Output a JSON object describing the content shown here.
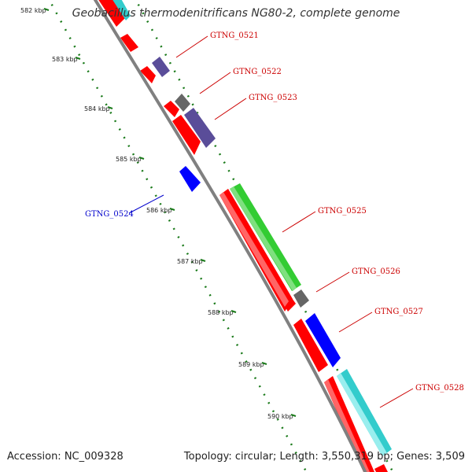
{
  "title": "Geobacillus thermodenitrificans NG80-2, complete genome",
  "footer": {
    "accession": "Accession: NC_009328",
    "summary": "Topology: circular; Length: 3,550,319 bp; Genes: 3,509"
  },
  "colors": {
    "backbone": "#808080",
    "ruler": "#1a7a1a",
    "forward_cds": "#ff0000",
    "reverse_cds": "#0000ff",
    "green_feature": "#33cc33",
    "cyan_feature": "#33cccc",
    "purple_feature": "#5a4d99",
    "gray_feature": "#666666",
    "forward_label": "#cc0000",
    "reverse_label": "#0000cc"
  },
  "ruler_ticks": [
    {
      "label": "582 kbp"
    },
    {
      "label": "583 kbp"
    },
    {
      "label": "584 kbp"
    },
    {
      "label": "585 kbp"
    },
    {
      "label": "586 kbp"
    },
    {
      "label": "587 kbp"
    },
    {
      "label": "588 kbp"
    },
    {
      "label": "589 kbp"
    },
    {
      "label": "590 kbp"
    }
  ],
  "gene_labels": [
    {
      "name": "GTNG_0521",
      "strand": "forward"
    },
    {
      "name": "GTNG_0522",
      "strand": "forward"
    },
    {
      "name": "GTNG_0523",
      "strand": "forward"
    },
    {
      "name": "GTNG_0524",
      "strand": "reverse"
    },
    {
      "name": "GTNG_0525",
      "strand": "forward"
    },
    {
      "name": "GTNG_0526",
      "strand": "forward"
    },
    {
      "name": "GTNG_0527",
      "strand": "forward"
    },
    {
      "name": "GTNG_0528",
      "strand": "forward"
    }
  ]
}
